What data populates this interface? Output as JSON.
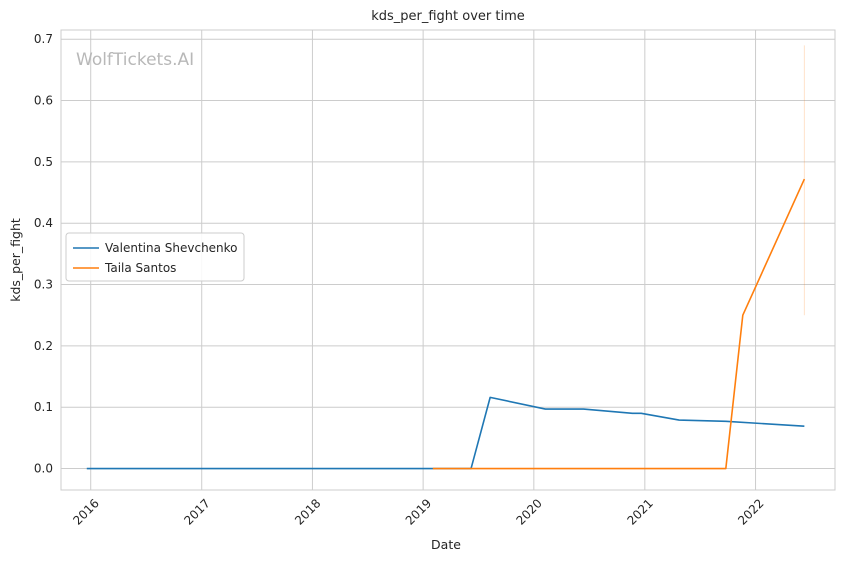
{
  "chart_data": {
    "type": "line",
    "title": "kds_per_fight over time",
    "xlabel": "Date",
    "ylabel": "kds_per_fight",
    "watermark": "WolfTickets.AI",
    "xlim": [
      "2015-09-25",
      "2022-09-20"
    ],
    "ylim": [
      -0.035,
      0.715
    ],
    "x_ticks": [
      "2016",
      "2017",
      "2018",
      "2019",
      "2020",
      "2021",
      "2022"
    ],
    "y_ticks": [
      "0.0",
      "0.1",
      "0.2",
      "0.3",
      "0.4",
      "0.5",
      "0.6",
      "0.7"
    ],
    "grid": true,
    "legend_position": "center-left",
    "series": [
      {
        "name": "Valentina Shevchenko",
        "color": "#1f77b4",
        "points": [
          [
            "2015-12-19",
            0.0
          ],
          [
            "2016-03-05",
            0.0
          ],
          [
            "2016-07-23",
            0.0
          ],
          [
            "2017-09-09",
            0.0
          ],
          [
            "2018-02-03",
            0.0
          ],
          [
            "2018-06-09",
            0.0
          ],
          [
            "2018-12-08",
            0.0
          ],
          [
            "2019-06-08",
            0.0
          ],
          [
            "2019-08-10",
            0.116
          ],
          [
            "2020-02-08",
            0.097
          ],
          [
            "2020-06-13",
            0.097
          ],
          [
            "2020-11-21",
            0.09
          ],
          [
            "2020-12-20",
            0.09
          ],
          [
            "2021-04-24",
            0.079
          ],
          [
            "2021-09-25",
            0.077
          ],
          [
            "2022-06-11",
            0.069
          ]
        ]
      },
      {
        "name": "Taila Santos",
        "color": "#ff7f0e",
        "points": [
          [
            "2019-02-02",
            0.0
          ],
          [
            "2019-06-08",
            0.0
          ],
          [
            "2020-02-08",
            0.0
          ],
          [
            "2020-07-12",
            0.0
          ],
          [
            "2021-01-20",
            0.0
          ],
          [
            "2021-09-25",
            0.0
          ],
          [
            "2021-11-20",
            0.25
          ],
          [
            "2022-06-11",
            0.472
          ]
        ],
        "band": {
          "x": "2022-06-11",
          "low": 0.25,
          "high": 0.69
        }
      }
    ]
  }
}
